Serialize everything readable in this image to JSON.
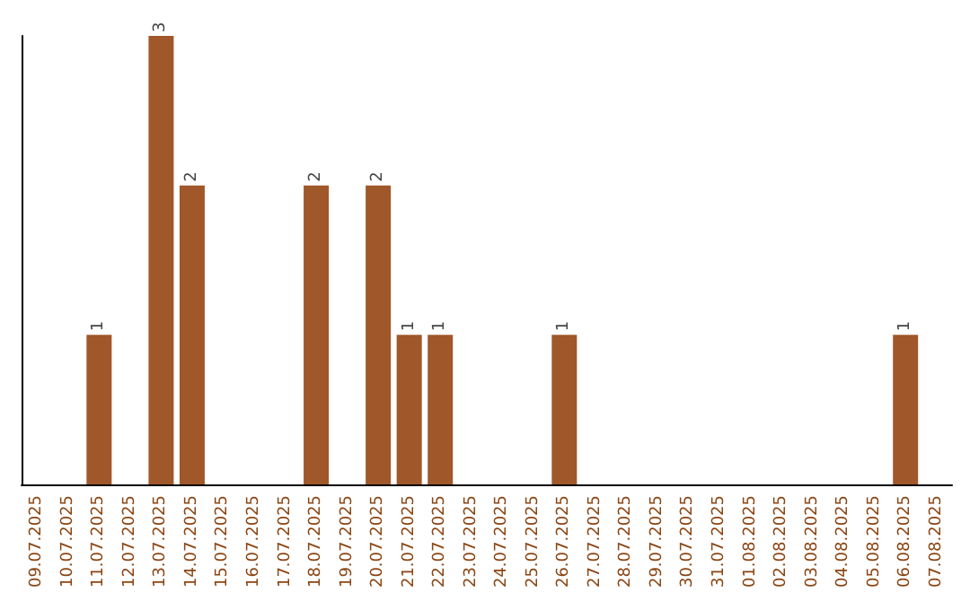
{
  "chart_data": {
    "type": "bar",
    "categories": [
      "09.07.2025",
      "10.07.2025",
      "11.07.2025",
      "12.07.2025",
      "13.07.2025",
      "14.07.2025",
      "15.07.2025",
      "16.07.2025",
      "17.07.2025",
      "18.07.2025",
      "19.07.2025",
      "20.07.2025",
      "21.07.2025",
      "22.07.2025",
      "23.07.2025",
      "24.07.2025",
      "25.07.2025",
      "26.07.2025",
      "27.07.2025",
      "28.07.2025",
      "29.07.2025",
      "30.07.2025",
      "31.07.2025",
      "01.08.2025",
      "02.08.2025",
      "03.08.2025",
      "04.08.2025",
      "05.08.2025",
      "06.08.2025",
      "07.08.2025"
    ],
    "values": [
      0,
      0,
      1,
      0,
      3,
      2,
      0,
      0,
      0,
      2,
      0,
      2,
      1,
      1,
      0,
      0,
      0,
      1,
      0,
      0,
      0,
      0,
      0,
      0,
      0,
      0,
      0,
      0,
      1,
      0
    ],
    "value_labels": [
      null,
      null,
      "1",
      null,
      "3",
      "2",
      null,
      null,
      null,
      "2",
      null,
      "2",
      "1",
      "1",
      null,
      null,
      null,
      "1",
      null,
      null,
      null,
      null,
      null,
      null,
      null,
      null,
      null,
      null,
      "1",
      null
    ],
    "color": "#a0572a",
    "tick_labels": "x",
    "grid": false
  }
}
